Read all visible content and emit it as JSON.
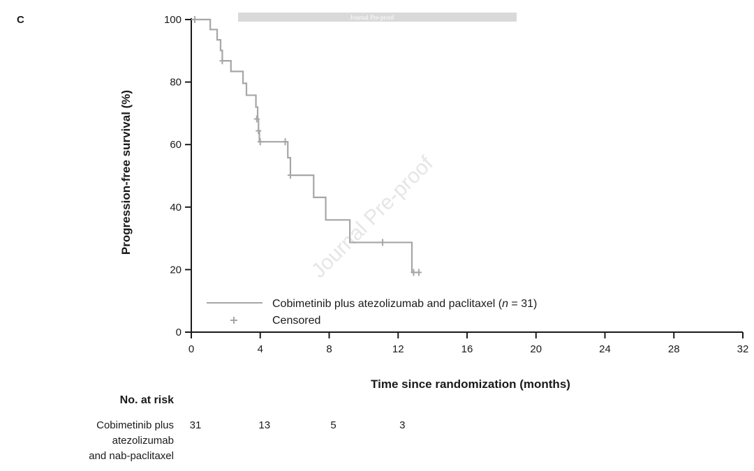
{
  "panel_label": "C",
  "banner_text": "Journal Pre-proof",
  "watermark_text": "Journal Pre-proof",
  "colors": {
    "curve": "#a6a6a6",
    "axis": "#1a1a1a",
    "banner": "#d9d9d9"
  },
  "chart_data": {
    "type": "line",
    "subtype": "kaplan-meier",
    "xlabel": "Time since randomization (months)",
    "ylabel": "Progression-free survival (%)",
    "xlim": [
      0,
      32
    ],
    "ylim": [
      0,
      100
    ],
    "xticks": [
      0,
      4,
      8,
      12,
      16,
      20,
      24,
      28,
      32
    ],
    "yticks": [
      0,
      20,
      40,
      60,
      80,
      100
    ],
    "grid": false,
    "legend_position": "bottom-left",
    "series": [
      {
        "name": "Cobimetinib plus atezolizumab and paclitaxel (n = 31)",
        "steps": [
          [
            0,
            100
          ],
          [
            1.1,
            96.8
          ],
          [
            1.5,
            93.5
          ],
          [
            1.7,
            90.1
          ],
          [
            1.8,
            86.8
          ],
          [
            2.3,
            83.4
          ],
          [
            3.0,
            79.6
          ],
          [
            3.2,
            75.8
          ],
          [
            3.75,
            72.0
          ],
          [
            3.85,
            68.2
          ],
          [
            3.9,
            64.4
          ],
          [
            3.95,
            60.9
          ],
          [
            5.6,
            55.8
          ],
          [
            5.75,
            50.2
          ],
          [
            7.1,
            43.1
          ],
          [
            7.8,
            35.9
          ],
          [
            9.2,
            28.7
          ],
          [
            12.8,
            19.1
          ],
          [
            13.3,
            19.1
          ]
        ],
        "censored": [
          [
            0.2,
            100
          ],
          [
            1.8,
            86.8
          ],
          [
            3.8,
            68.2
          ],
          [
            3.9,
            64.4
          ],
          [
            4.0,
            60.9
          ],
          [
            5.45,
            60.9
          ],
          [
            5.75,
            50.2
          ],
          [
            11.1,
            28.7
          ],
          [
            12.9,
            19.1
          ],
          [
            13.2,
            19.1
          ]
        ]
      }
    ],
    "legend": {
      "line_label_main": "Cobimetinib plus atezolizumab and paclitaxel (",
      "line_label_italic": "n",
      "line_label_end": " = 31)",
      "marker_label": "Censored"
    },
    "risk_table": {
      "title": "No. at risk",
      "group_lines": [
        "Cobimetinib plus",
        "atezolizumab",
        "and nab-paclitaxel"
      ],
      "times": [
        0,
        4,
        8,
        12
      ],
      "counts": [
        "31",
        "13",
        "5",
        "3"
      ]
    }
  }
}
